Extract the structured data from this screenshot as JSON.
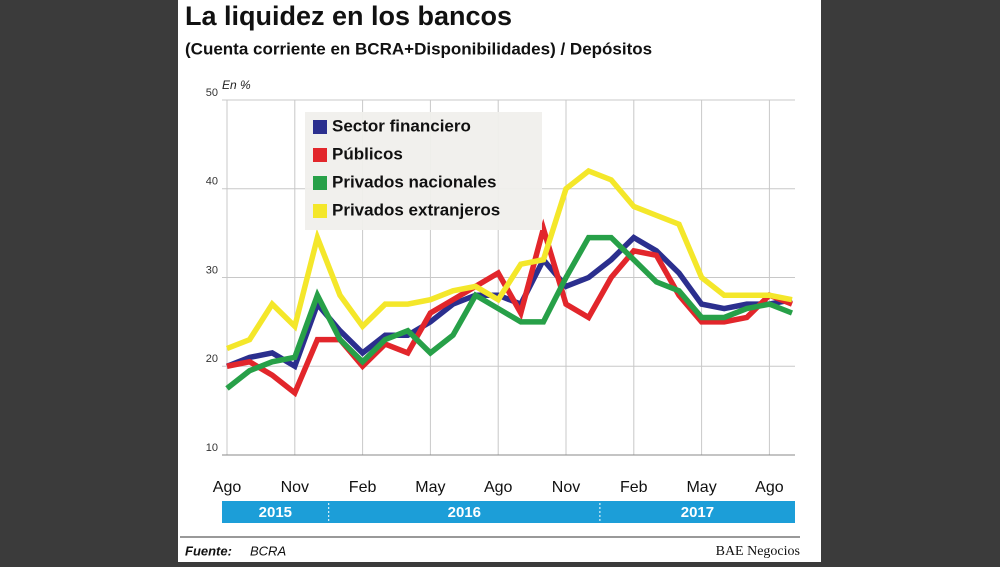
{
  "chart_data": {
    "type": "line",
    "title": "La liquidez en los bancos",
    "subtitle": "(Cuenta corriente en BCRA+Disponibilidades) / Depósitos",
    "y_label": "En %",
    "categories": [
      "Ago",
      null,
      null,
      "Nov",
      null,
      null,
      "Feb",
      null,
      null,
      "May",
      null,
      null,
      "Ago",
      null,
      null,
      "Nov",
      null,
      null,
      "Feb",
      null,
      null,
      "May",
      null,
      null,
      "Ago",
      null
    ],
    "years": [
      "2015",
      "2016",
      "2017"
    ],
    "ylim": [
      10,
      50
    ],
    "yticks": [
      10,
      20,
      30,
      40,
      50
    ],
    "grid": true,
    "legend": "upper left",
    "series": [
      {
        "name": "Sector financiero",
        "color": "#2b2f8e",
        "values": [
          20,
          21,
          21.5,
          20,
          27,
          24,
          21.5,
          23.5,
          23.5,
          25,
          27,
          28,
          28,
          27,
          32,
          29,
          30,
          32,
          34.5,
          33,
          30.5,
          27,
          26.5,
          27,
          27,
          27.5
        ]
      },
      {
        "name": "Públicos",
        "color": "#e2262b",
        "values": [
          20,
          20.5,
          19,
          17,
          23,
          23,
          20,
          22.5,
          21.5,
          26,
          27.5,
          29,
          30.5,
          26,
          35.5,
          27,
          25.5,
          30,
          33,
          32.5,
          28,
          25,
          25,
          25.5,
          28,
          27
        ]
      },
      {
        "name": "Privados nacionales",
        "color": "#27a048",
        "values": [
          17.5,
          19.5,
          20.5,
          21,
          28,
          23,
          20.5,
          23,
          24,
          21.5,
          23.5,
          28,
          26.5,
          25,
          25,
          30,
          34.5,
          34.5,
          32,
          29.5,
          28.5,
          25.5,
          25.5,
          26.5,
          27,
          26
        ]
      },
      {
        "name": "Privados extranjeros",
        "color": "#f4e72a",
        "values": [
          22,
          23,
          27,
          24.5,
          34.5,
          28,
          24.5,
          27,
          27,
          27.5,
          28.5,
          29,
          27.5,
          31.5,
          32,
          40,
          42,
          41,
          38,
          37,
          36,
          30,
          28,
          28,
          28,
          27.5
        ]
      }
    ],
    "source_label": "Fuente:",
    "source": "BCRA",
    "credit": "BAE Negocios"
  }
}
